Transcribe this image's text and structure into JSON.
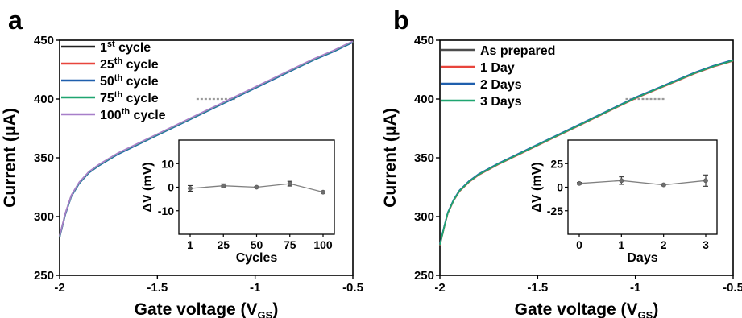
{
  "chart_data": [
    {
      "type": "line",
      "panel_label": "a",
      "xlabel": "Gate voltage (V",
      "xlabel_sub": "GS",
      "xlabel_end": ")",
      "ylabel": "Current (μA)",
      "xlim": [
        -2,
        -0.5
      ],
      "ylim": [
        250,
        450
      ],
      "x_ticks": [
        -2,
        -1.5,
        -1,
        -0.5
      ],
      "x_tick_labels": [
        "-2",
        "-1.5",
        "-1",
        "-0.5"
      ],
      "y_ticks": [
        250,
        300,
        350,
        400,
        450
      ],
      "y_tick_labels": [
        "250",
        "300",
        "350",
        "400",
        "450"
      ],
      "legend_position": "top-left",
      "series": [
        {
          "name": "1",
          "name_sup": "st",
          "name_rest": " cycle",
          "color": "#222222",
          "offset": 0
        },
        {
          "name": "25",
          "name_sup": "th",
          "name_rest": " cycle",
          "color": "#e8453c",
          "offset": 0.6
        },
        {
          "name": "50",
          "name_sup": "th",
          "name_rest": " cycle",
          "color": "#1f5fad",
          "offset": 1.2
        },
        {
          "name": "75",
          "name_sup": "th",
          "name_rest": " cycle",
          "color": "#1fa570",
          "offset": 0.3
        },
        {
          "name": "100",
          "name_sup": "th",
          "name_rest": " cycle",
          "color": "#a77fc9",
          "offset": -0.3
        }
      ],
      "curve": {
        "x": [
          -2,
          -1.97,
          -1.94,
          -1.9,
          -1.85,
          -1.8,
          -1.7,
          -1.6,
          -1.5,
          -1.4,
          -1.3,
          -1.2,
          -1.1,
          -1.0,
          -0.9,
          -0.8,
          -0.7,
          -0.6,
          -0.5
        ],
        "y": [
          283,
          303,
          318,
          329,
          338,
          344,
          354,
          362,
          370,
          378,
          386,
          394,
          402,
          410,
          418,
          426,
          434,
          441,
          449
        ]
      },
      "reference_line": {
        "x_start": -1.3,
        "x_end": -1.1,
        "y": 400
      },
      "inset": {
        "type": "line",
        "xlabel": "Cycles",
        "ylabel": "ΔV (mV)",
        "categories": [
          "1",
          "25",
          "50",
          "75",
          "100"
        ],
        "values": [
          -0.5,
          0.6,
          0,
          1.5,
          -2.1
        ],
        "errors": [
          1.2,
          0.8,
          0.3,
          1.0,
          0.3
        ],
        "ylim": [
          -20,
          20
        ],
        "y_ticks": [
          -10,
          0,
          10
        ],
        "y_tick_labels": [
          "-10",
          "0",
          "10"
        ],
        "color": "#808080"
      }
    },
    {
      "type": "line",
      "panel_label": "b",
      "xlabel": "Gate voltage (V",
      "xlabel_sub": "GS",
      "xlabel_end": ")",
      "ylabel": "Current (μA)",
      "xlim": [
        -2,
        -0.5
      ],
      "ylim": [
        250,
        450
      ],
      "x_ticks": [
        -2,
        -1.5,
        -1,
        -0.5
      ],
      "x_tick_labels": [
        "-2",
        "-1.5",
        "-1",
        "-0.5"
      ],
      "y_ticks": [
        250,
        300,
        350,
        400,
        450
      ],
      "y_tick_labels": [
        "250",
        "300",
        "350",
        "400",
        "450"
      ],
      "legend_position": "top-left",
      "series": [
        {
          "name": "As prepared",
          "name_sup": "",
          "name_rest": "",
          "color": "#4d4d4d",
          "offset": 0
        },
        {
          "name": "1 Day",
          "name_sup": "",
          "name_rest": "",
          "color": "#e8453c",
          "offset": 0.8
        },
        {
          "name": "2 Days",
          "name_sup": "",
          "name_rest": "",
          "color": "#1f5fad",
          "offset": -0.5
        },
        {
          "name": "3 Days",
          "name_sup": "",
          "name_rest": "",
          "color": "#1fa570",
          "offset": 0.3
        }
      ],
      "curve": {
        "x": [
          -2,
          -1.98,
          -1.96,
          -1.93,
          -1.9,
          -1.85,
          -1.8,
          -1.7,
          -1.6,
          -1.5,
          -1.4,
          -1.3,
          -1.2,
          -1.1,
          -1.0,
          -0.9,
          -0.8,
          -0.7,
          -0.6,
          -0.5
        ],
        "y": [
          276,
          290,
          303,
          314,
          322,
          330,
          336,
          345,
          353,
          361,
          369,
          377,
          385,
          393,
          401,
          408,
          415,
          422,
          428,
          433
        ]
      },
      "reference_line": {
        "x_start": -1.05,
        "x_end": -0.85,
        "y": 400
      },
      "inset": {
        "type": "line",
        "xlabel": "Days",
        "ylabel": "ΔV (mV)",
        "categories": [
          "0",
          "1",
          "2",
          "3"
        ],
        "values": [
          4,
          7,
          2.5,
          7
        ],
        "errors": [
          1.0,
          4.0,
          1.0,
          6.0
        ],
        "ylim": [
          -50,
          50
        ],
        "y_ticks": [
          -25,
          0,
          25
        ],
        "y_tick_labels": [
          "-25",
          "0",
          "25"
        ],
        "color": "#808080"
      }
    }
  ]
}
